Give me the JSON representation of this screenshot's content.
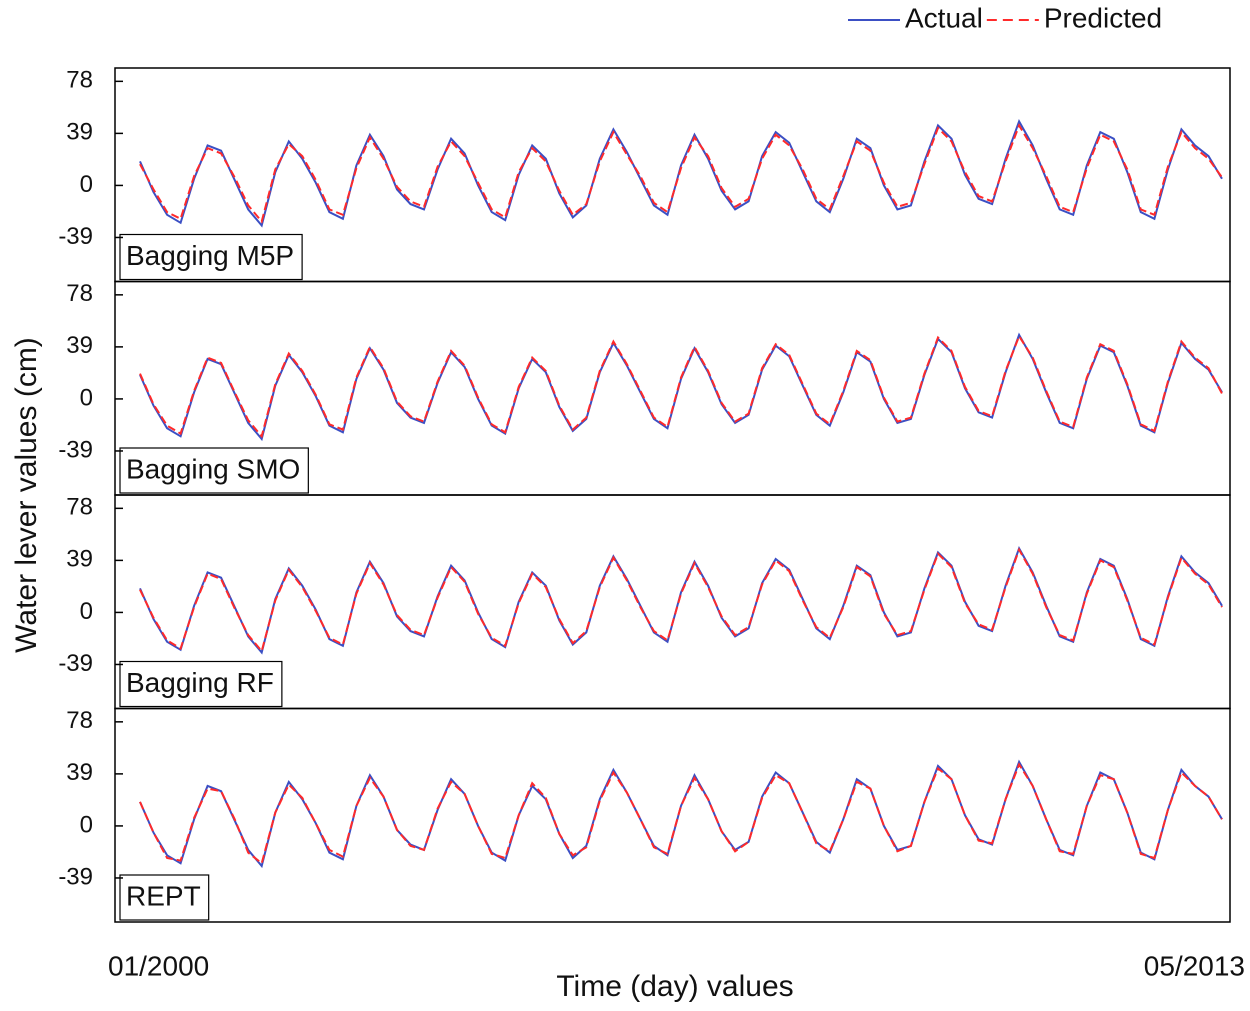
{
  "chart_data": [
    {
      "type": "line",
      "label": "Bagging M5P",
      "ylabel": "Water lever values (cm)",
      "ylim": [
        -72,
        88
      ],
      "yticks": [
        -39,
        0,
        39,
        78
      ],
      "series": [
        {
          "name": "Actual",
          "color": "#3b4fc4",
          "dashed": false,
          "values": [
            18,
            -5,
            -22,
            -28,
            5,
            30,
            26,
            4,
            -18,
            -30,
            10,
            33,
            20,
            2,
            -20,
            -25,
            15,
            38,
            22,
            -3,
            -14,
            -18,
            12,
            35,
            24,
            0,
            -20,
            -26,
            8,
            30,
            20,
            -6,
            -24,
            -15,
            20,
            42,
            25,
            5,
            -15,
            -22,
            15,
            38,
            20,
            -4,
            -18,
            -12,
            22,
            40,
            32,
            10,
            -12,
            -20,
            5,
            35,
            28,
            0,
            -18,
            -15,
            18,
            45,
            35,
            8,
            -10,
            -14,
            20,
            48,
            30,
            5,
            -18,
            -22,
            15,
            40,
            35,
            10,
            -20,
            -25,
            12,
            42,
            30,
            22,
            5
          ]
        },
        {
          "name": "Predicted",
          "color": "#ff2a2a",
          "dashed": true,
          "values": [
            16,
            -3,
            -20,
            -25,
            7,
            28,
            24,
            6,
            -15,
            -27,
            12,
            31,
            22,
            4,
            -18,
            -22,
            13,
            36,
            20,
            -1,
            -12,
            -16,
            14,
            33,
            22,
            2,
            -18,
            -24,
            10,
            28,
            18,
            -4,
            -22,
            -14,
            18,
            40,
            23,
            7,
            -13,
            -20,
            13,
            36,
            22,
            -2,
            -16,
            -10,
            20,
            38,
            30,
            12,
            -10,
            -18,
            7,
            33,
            26,
            2,
            -16,
            -13,
            16,
            43,
            33,
            10,
            -8,
            -12,
            18,
            45,
            28,
            7,
            -16,
            -20,
            13,
            38,
            33,
            12,
            -18,
            -22,
            14,
            40,
            28,
            20,
            6
          ]
        }
      ]
    },
    {
      "type": "line",
      "label": "Bagging SMO",
      "ylim": [
        -72,
        88
      ],
      "yticks": [
        -39,
        0,
        39,
        78
      ],
      "series": [
        {
          "color": "#3b4fc4",
          "dashed": false,
          "values": [
            18,
            -5,
            -22,
            -28,
            5,
            30,
            26,
            4,
            -18,
            -30,
            10,
            33,
            20,
            2,
            -20,
            -25,
            15,
            38,
            22,
            -3,
            -14,
            -18,
            12,
            35,
            24,
            0,
            -20,
            -26,
            8,
            30,
            20,
            -6,
            -24,
            -15,
            20,
            42,
            25,
            5,
            -15,
            -22,
            15,
            38,
            20,
            -4,
            -18,
            -12,
            22,
            40,
            32,
            10,
            -12,
            -20,
            5,
            35,
            28,
            0,
            -18,
            -15,
            18,
            45,
            35,
            8,
            -10,
            -14,
            20,
            48,
            30,
            5,
            -18,
            -22,
            15,
            40,
            35,
            10,
            -20,
            -25,
            12,
            42,
            30,
            22,
            5
          ]
        },
        {
          "color": "#ff2a2a",
          "dashed": true,
          "values": [
            19,
            -4,
            -20,
            -26,
            6,
            31,
            27,
            5,
            -16,
            -28,
            11,
            34,
            21,
            3,
            -19,
            -23,
            16,
            39,
            23,
            -2,
            -13,
            -17,
            13,
            36,
            25,
            1,
            -19,
            -25,
            9,
            31,
            21,
            -5,
            -23,
            -14,
            21,
            43,
            26,
            6,
            -14,
            -21,
            16,
            39,
            21,
            -3,
            -17,
            -11,
            23,
            41,
            33,
            11,
            -11,
            -19,
            6,
            36,
            29,
            1,
            -17,
            -14,
            19,
            46,
            36,
            9,
            -9,
            -13,
            21,
            47,
            31,
            6,
            -17,
            -21,
            16,
            41,
            36,
            11,
            -19,
            -24,
            13,
            43,
            31,
            23,
            4
          ]
        }
      ]
    },
    {
      "type": "line",
      "label": "Bagging RF",
      "ylim": [
        -72,
        88
      ],
      "yticks": [
        -39,
        0,
        39,
        78
      ],
      "series": [
        {
          "color": "#3b4fc4",
          "dashed": false,
          "values": [
            18,
            -5,
            -22,
            -28,
            5,
            30,
            26,
            4,
            -18,
            -30,
            10,
            33,
            20,
            2,
            -20,
            -25,
            15,
            38,
            22,
            -3,
            -14,
            -18,
            12,
            35,
            24,
            0,
            -20,
            -26,
            8,
            30,
            20,
            -6,
            -24,
            -15,
            20,
            42,
            25,
            5,
            -15,
            -22,
            15,
            38,
            20,
            -4,
            -18,
            -12,
            22,
            40,
            32,
            10,
            -12,
            -20,
            5,
            35,
            28,
            0,
            -18,
            -15,
            18,
            45,
            35,
            8,
            -10,
            -14,
            20,
            48,
            30,
            5,
            -18,
            -22,
            15,
            40,
            35,
            10,
            -20,
            -25,
            12,
            42,
            30,
            22,
            5
          ]
        },
        {
          "color": "#ff2a2a",
          "dashed": true,
          "values": [
            17,
            -4,
            -21,
            -27,
            4,
            29,
            25,
            3,
            -17,
            -29,
            9,
            32,
            19,
            1,
            -19,
            -24,
            14,
            37,
            21,
            -2,
            -13,
            -17,
            11,
            34,
            23,
            -1,
            -19,
            -25,
            7,
            29,
            19,
            -5,
            -23,
            -14,
            19,
            41,
            24,
            4,
            -14,
            -21,
            14,
            37,
            19,
            -3,
            -17,
            -11,
            21,
            39,
            31,
            9,
            -11,
            -19,
            4,
            34,
            27,
            -1,
            -17,
            -14,
            17,
            44,
            34,
            7,
            -9,
            -13,
            19,
            47,
            29,
            4,
            -17,
            -21,
            14,
            39,
            34,
            9,
            -19,
            -24,
            11,
            41,
            29,
            21,
            4
          ]
        }
      ]
    },
    {
      "type": "line",
      "label": "REPT",
      "xlabel": "Time (day) values",
      "ylim": [
        -72,
        88
      ],
      "yticks": [
        -39,
        0,
        39,
        78
      ],
      "categories": [
        "01/2000",
        null,
        null,
        null,
        null,
        null,
        null,
        null,
        null,
        null,
        null,
        null,
        null,
        null,
        null,
        null,
        null,
        null,
        null,
        null,
        null,
        null,
        null,
        null,
        null,
        null,
        null,
        null,
        null,
        null,
        null,
        null,
        null,
        null,
        null,
        null,
        null,
        null,
        null,
        null,
        null,
        null,
        null,
        null,
        null,
        null,
        null,
        null,
        null,
        null,
        null,
        null,
        null,
        null,
        null,
        null,
        null,
        null,
        null,
        null,
        null,
        null,
        null,
        null,
        null,
        null,
        null,
        null,
        null,
        null,
        null,
        null,
        null,
        null,
        null,
        null,
        null,
        null,
        null,
        null,
        "05/2013"
      ],
      "series": [
        {
          "color": "#3b4fc4",
          "dashed": false,
          "values": [
            18,
            -5,
            -22,
            -28,
            5,
            30,
            26,
            4,
            -18,
            -30,
            10,
            33,
            20,
            2,
            -20,
            -25,
            15,
            38,
            22,
            -3,
            -14,
            -18,
            12,
            35,
            24,
            0,
            -20,
            -26,
            8,
            30,
            20,
            -6,
            -24,
            -15,
            20,
            42,
            25,
            5,
            -15,
            -22,
            15,
            38,
            20,
            -4,
            -18,
            -12,
            22,
            40,
            32,
            10,
            -12,
            -20,
            5,
            35,
            28,
            0,
            -18,
            -15,
            18,
            45,
            35,
            8,
            -10,
            -14,
            20,
            48,
            30,
            5,
            -18,
            -22,
            15,
            40,
            35,
            10,
            -20,
            -25,
            12,
            42,
            30,
            22,
            5
          ]
        },
        {
          "color": "#ff2a2a",
          "dashed": true,
          "values": [
            18,
            -5,
            -24,
            -26,
            6,
            28,
            26,
            5,
            -20,
            -28,
            10,
            31,
            21,
            2,
            -18,
            -23,
            15,
            36,
            22,
            -3,
            -15,
            -18,
            13,
            33,
            24,
            0,
            -21,
            -24,
            8,
            32,
            21,
            -6,
            -22,
            -16,
            19,
            40,
            25,
            5,
            -16,
            -21,
            15,
            36,
            20,
            -4,
            -19,
            -12,
            21,
            38,
            32,
            10,
            -13,
            -19,
            5,
            33,
            28,
            0,
            -19,
            -15,
            18,
            43,
            35,
            8,
            -11,
            -13,
            20,
            46,
            30,
            5,
            -19,
            -21,
            15,
            38,
            35,
            10,
            -21,
            -24,
            12,
            40,
            30,
            22,
            5
          ]
        }
      ]
    }
  ]
}
